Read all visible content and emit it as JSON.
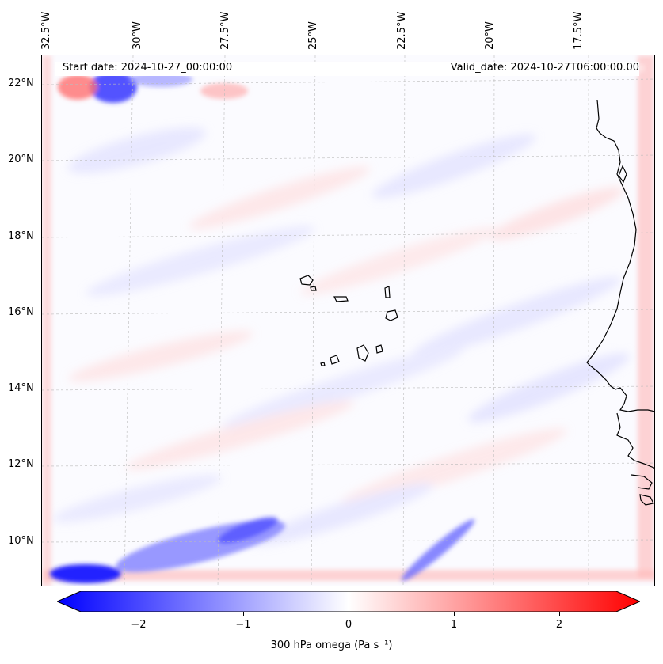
{
  "map": {
    "start_label": "Start date: 2024-10-27_00:00:00",
    "valid_label": "Valid_date: 2024-10-27T06:00:00.00",
    "lon_labels": [
      "32.5°W",
      "30°W",
      "27.5°W",
      "25°W",
      "22.5°W",
      "20°W",
      "17.5°W"
    ],
    "lat_labels": [
      "22°N",
      "20°N",
      "18°N",
      "16°N",
      "14°N",
      "12°N",
      "10°N"
    ]
  },
  "colorbar": {
    "label": "300 hPa omega (Pa s⁻¹)",
    "ticks": [
      "−2",
      "−1",
      "0",
      "1",
      "2"
    ],
    "min_color": "#0000ff",
    "mid_color": "#ffffff",
    "max_color": "#ff0000"
  }
}
